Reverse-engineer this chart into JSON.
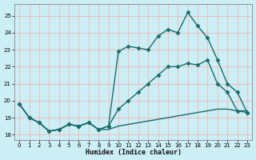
{
  "xlabel": "Humidex (Indice chaleur)",
  "bg_color": "#cceef5",
  "grid_color": "#f0b8b8",
  "line_color": "#1a6b6b",
  "ylim": [
    17.7,
    25.7
  ],
  "xlim": [
    -0.5,
    23.5
  ],
  "yticks": [
    18,
    19,
    20,
    21,
    22,
    23,
    24,
    25
  ],
  "xticks": [
    0,
    1,
    2,
    3,
    4,
    5,
    6,
    7,
    8,
    9,
    10,
    11,
    12,
    13,
    14,
    15,
    16,
    17,
    18,
    19,
    20,
    21,
    22,
    23
  ],
  "series": [
    {
      "x": [
        0,
        1,
        2,
        3,
        4,
        5,
        6,
        7,
        8,
        9,
        10,
        11,
        12,
        13,
        14,
        15,
        16,
        17,
        18,
        19,
        20,
        21,
        22,
        23
      ],
      "y": [
        19.8,
        19.0,
        18.7,
        18.2,
        18.3,
        18.6,
        18.5,
        18.7,
        18.3,
        18.3,
        18.5,
        18.6,
        18.7,
        18.8,
        18.9,
        19.0,
        19.1,
        19.2,
        19.3,
        19.4,
        19.5,
        19.5,
        19.4,
        19.4
      ],
      "marker": null,
      "linewidth": 1.0
    },
    {
      "x": [
        0,
        1,
        2,
        3,
        4,
        5,
        6,
        7,
        8,
        9,
        10,
        11,
        12,
        13,
        14,
        15,
        16,
        17,
        18,
        19,
        20,
        21,
        22,
        23
      ],
      "y": [
        19.8,
        19.0,
        18.7,
        18.2,
        18.3,
        18.6,
        18.5,
        18.7,
        18.3,
        18.5,
        19.5,
        20.0,
        20.5,
        21.0,
        21.5,
        22.0,
        22.0,
        22.2,
        22.1,
        22.4,
        21.0,
        20.5,
        19.4,
        19.3
      ],
      "marker": "D",
      "markersize": 2.5,
      "linewidth": 1.0
    },
    {
      "x": [
        0,
        1,
        2,
        3,
        4,
        5,
        6,
        7,
        8,
        9,
        10,
        11,
        12,
        13,
        14,
        15,
        16,
        17,
        18,
        19,
        20,
        21,
        22,
        23
      ],
      "y": [
        19.8,
        19.0,
        18.7,
        18.2,
        18.3,
        18.6,
        18.5,
        18.7,
        18.3,
        18.5,
        22.9,
        23.2,
        23.1,
        23.0,
        23.8,
        24.2,
        24.0,
        25.2,
        24.4,
        23.7,
        22.4,
        21.0,
        20.5,
        19.3
      ],
      "marker": "D",
      "markersize": 2.5,
      "linewidth": 1.0
    }
  ]
}
